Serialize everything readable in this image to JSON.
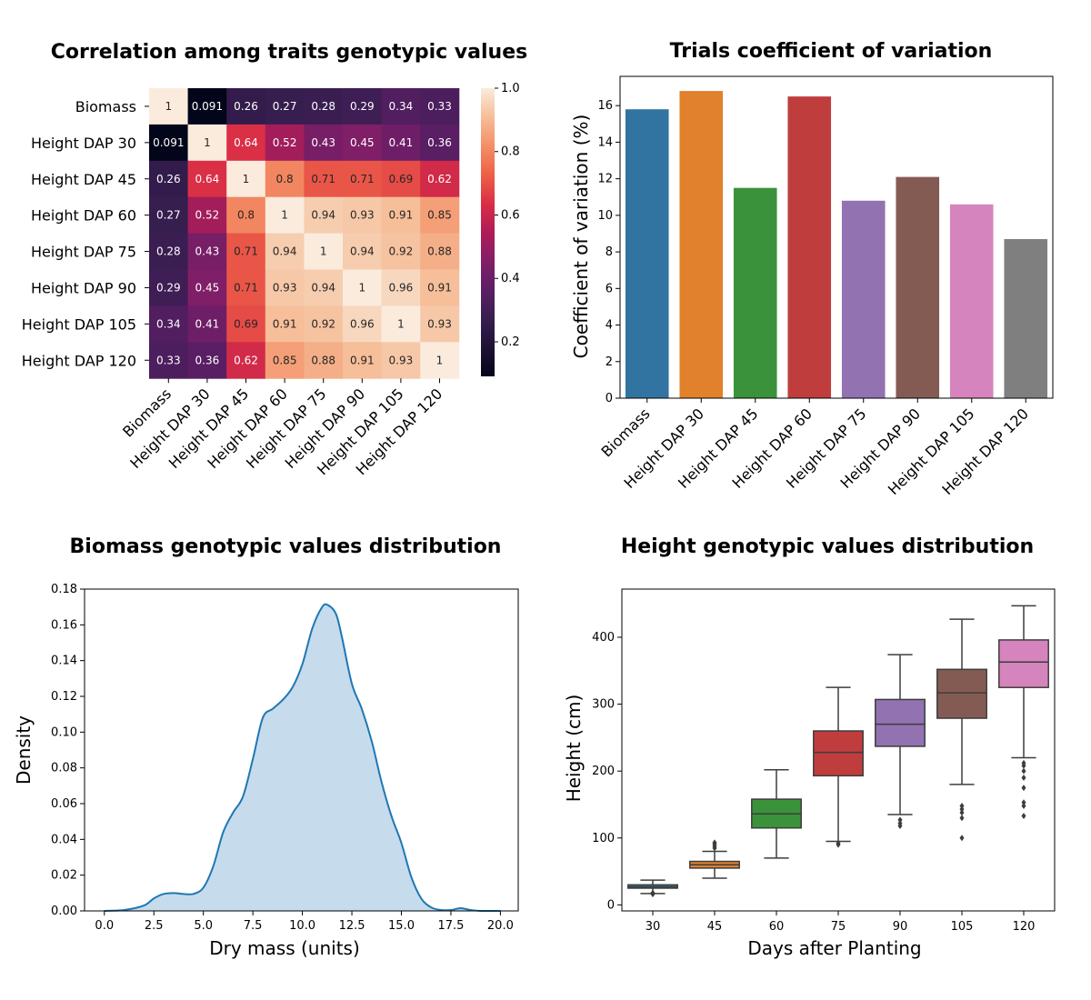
{
  "charts": [
    {
      "type": "heatmap",
      "title": "Correlation among traits genotypic values",
      "labels": [
        "Biomass",
        "Height DAP 30",
        "Height DAP 45",
        "Height DAP 60",
        "Height DAP 75",
        "Height DAP 90",
        "Height DAP 105",
        "Height DAP 120"
      ],
      "matrix": [
        [
          1,
          0.091,
          0.26,
          0.27,
          0.28,
          0.29,
          0.34,
          0.33
        ],
        [
          0.091,
          1,
          0.64,
          0.52,
          0.43,
          0.45,
          0.41,
          0.36
        ],
        [
          0.26,
          0.64,
          1,
          0.8,
          0.71,
          0.71,
          0.69,
          0.62
        ],
        [
          0.27,
          0.52,
          0.8,
          1,
          0.94,
          0.93,
          0.91,
          0.85
        ],
        [
          0.28,
          0.43,
          0.71,
          0.94,
          1,
          0.94,
          0.92,
          0.88
        ],
        [
          0.29,
          0.45,
          0.71,
          0.93,
          0.94,
          1,
          0.96,
          0.91
        ],
        [
          0.34,
          0.41,
          0.69,
          0.91,
          0.92,
          0.96,
          1,
          0.93
        ],
        [
          0.33,
          0.36,
          0.62,
          0.85,
          0.88,
          0.91,
          0.93,
          1
        ]
      ],
      "colorbar_ticks": [
        "0.2",
        "0.4",
        "0.6",
        "0.8",
        "1.0"
      ],
      "colorbar_range": [
        0.091,
        1
      ]
    },
    {
      "type": "bar",
      "title": "Trials coefficient of variation",
      "categories": [
        "Biomass",
        "Height DAP 30",
        "Height DAP 45",
        "Height DAP 60",
        "Height DAP 75",
        "Height DAP 90",
        "Height DAP 105",
        "Height DAP 120"
      ],
      "values": [
        15.8,
        16.8,
        11.5,
        16.5,
        10.8,
        12.1,
        10.6,
        8.7
      ],
      "colors": [
        "#3274a1",
        "#e1812c",
        "#3a923a",
        "#c03d3e",
        "#9372b2",
        "#845b53",
        "#d684bd",
        "#7f7f7f"
      ],
      "xlabel": "",
      "ylabel": "Coefficient of variation (%)",
      "ylim": [
        0,
        17.6
      ],
      "yticks": [
        "0",
        "2",
        "4",
        "6",
        "8",
        "10",
        "12",
        "14",
        "16"
      ]
    },
    {
      "type": "area",
      "title": "Biomass genotypic values distribution",
      "x": [
        0,
        1,
        2,
        2.5,
        3,
        3.5,
        4,
        4.5,
        5,
        5.5,
        6,
        6.5,
        7,
        7.5,
        8,
        8.5,
        9,
        9.5,
        10,
        10.5,
        11,
        11.3,
        11.7,
        12,
        12.5,
        13,
        13.5,
        14,
        14.5,
        15,
        15.5,
        16,
        16.5,
        17,
        17.5,
        18,
        18.5,
        19,
        20
      ],
      "y": [
        0,
        0.0005,
        0.003,
        0.007,
        0.0095,
        0.01,
        0.0095,
        0.0095,
        0.013,
        0.025,
        0.044,
        0.055,
        0.064,
        0.085,
        0.108,
        0.113,
        0.118,
        0.125,
        0.138,
        0.158,
        0.17,
        0.171,
        0.166,
        0.153,
        0.127,
        0.113,
        0.095,
        0.072,
        0.053,
        0.038,
        0.019,
        0.007,
        0.002,
        0.0005,
        0.0005,
        0.0015,
        0.0005,
        0,
        0
      ],
      "line_color": "#1f77b4",
      "fill_color": "#c6dbec",
      "xlabel": "Dry mass (units)",
      "ylabel": "Density",
      "xlim": [
        -1,
        20.9
      ],
      "ylim": [
        0,
        0.18
      ],
      "xticks": [
        "0.0",
        "2.5",
        "5.0",
        "7.5",
        "10.0",
        "12.5",
        "15.0",
        "17.5",
        "20.0"
      ],
      "yticks": [
        "0.00",
        "0.02",
        "0.04",
        "0.06",
        "0.08",
        "0.10",
        "0.12",
        "0.14",
        "0.16",
        "0.18"
      ]
    },
    {
      "type": "box",
      "title": "Height genotypic values distribution",
      "categories": [
        "30",
        "45",
        "60",
        "75",
        "90",
        "105",
        "120"
      ],
      "boxes": [
        {
          "whislo": 17,
          "q1": 25,
          "med": 27,
          "q3": 30,
          "whishi": 37,
          "fliers": [
            16,
            18
          ]
        },
        {
          "whislo": 40,
          "q1": 55,
          "med": 60,
          "q3": 65,
          "whishi": 80,
          "fliers": [
            85,
            88,
            91,
            93
          ]
        },
        {
          "whislo": 70,
          "q1": 115,
          "med": 136,
          "q3": 158,
          "whishi": 202,
          "fliers": []
        },
        {
          "whislo": 95,
          "q1": 193,
          "med": 228,
          "q3": 260,
          "whishi": 325,
          "fliers": [
            90,
            92
          ]
        },
        {
          "whislo": 135,
          "q1": 237,
          "med": 270,
          "q3": 307,
          "whishi": 374,
          "fliers": [
            118,
            122,
            127
          ]
        },
        {
          "whislo": 180,
          "q1": 279,
          "med": 317,
          "q3": 352,
          "whishi": 427,
          "fliers": [
            100,
            130,
            138,
            143,
            148
          ]
        },
        {
          "whislo": 220,
          "q1": 325,
          "med": 363,
          "q3": 396,
          "whishi": 447,
          "fliers": [
            133,
            148,
            153,
            175,
            190,
            200,
            208,
            212
          ]
        }
      ],
      "colors": [
        "#3274a1",
        "#e1812c",
        "#3a923a",
        "#c03d3e",
        "#9372b2",
        "#845b53",
        "#d684bd"
      ],
      "xlabel": "Days after Planting",
      "ylabel": "Height (cm)",
      "ylim": [
        -9,
        472
      ],
      "yticks": [
        "0",
        "100",
        "200",
        "300",
        "400"
      ]
    }
  ]
}
